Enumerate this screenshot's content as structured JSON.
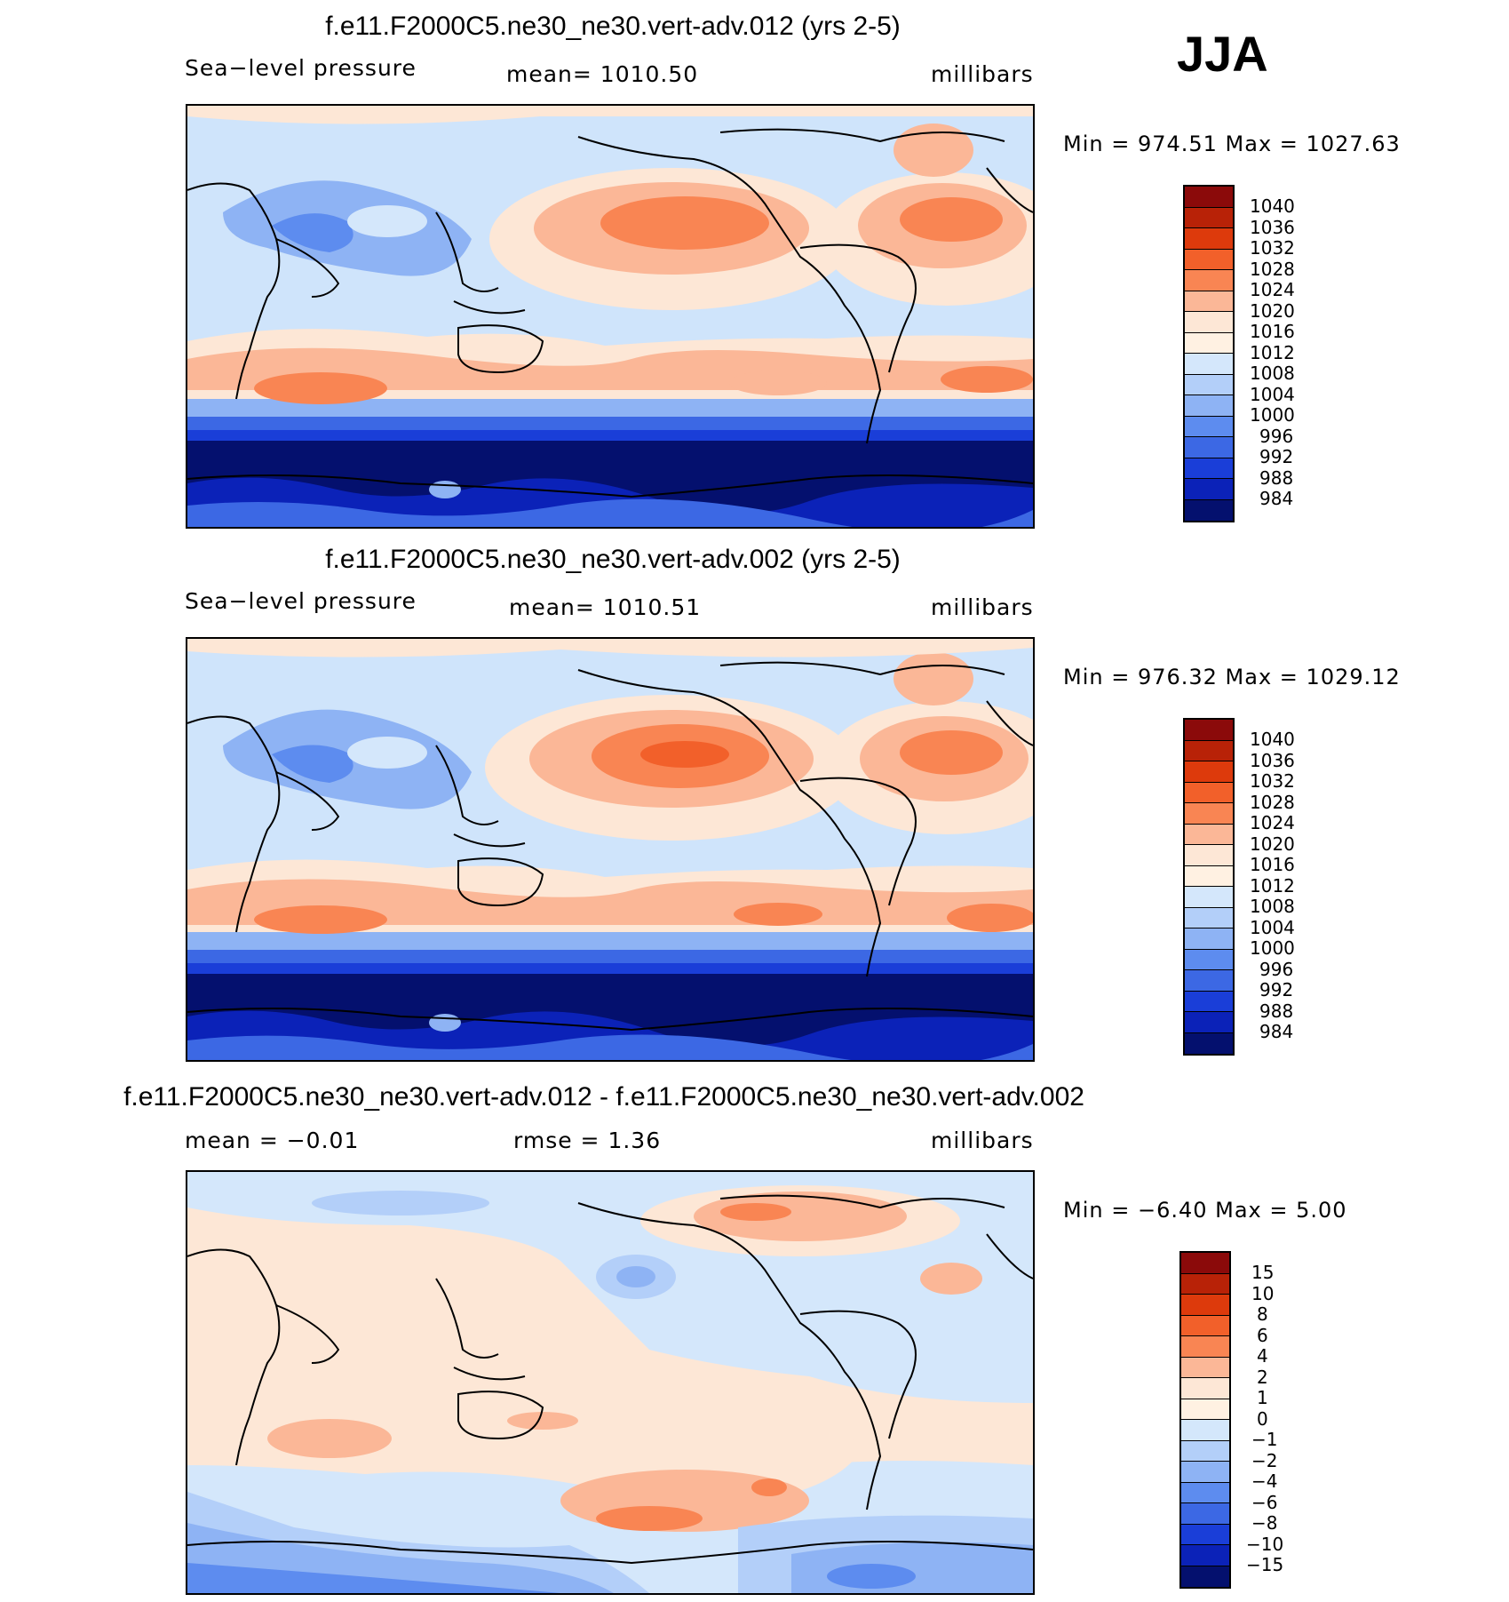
{
  "season": "JJA",
  "panels": [
    {
      "title": "f.e11.F2000C5.ne30_ne30.vert-adv.012 (yrs 2-5)",
      "left_text": "Sea−level pressure",
      "mean_text": "mean=  1010.50",
      "units": "millibars",
      "minmax": "Min  =  974.51  Max  =  1027.63",
      "colorbar_labels": [
        "1040",
        "1036",
        "1032",
        "1028",
        "1024",
        "1020",
        "1016",
        "1012",
        "1008",
        "1004",
        "1000",
        "996",
        "992",
        "988",
        "984"
      ]
    },
    {
      "title": "f.e11.F2000C5.ne30_ne30.vert-adv.002 (yrs 2-5)",
      "left_text": "Sea−level pressure",
      "mean_text": "mean=  1010.51",
      "units": "millibars",
      "minmax": "Min  =  976.32  Max  =  1029.12",
      "colorbar_labels": [
        "1040",
        "1036",
        "1032",
        "1028",
        "1024",
        "1020",
        "1016",
        "1012",
        "1008",
        "1004",
        "1000",
        "996",
        "992",
        "988",
        "984"
      ]
    },
    {
      "title": "f.e11.F2000C5.ne30_ne30.vert-adv.012 - f.e11.F2000C5.ne30_ne30.vert-adv.002",
      "left_text": "mean  =   −0.01",
      "mean_text": "rmse  =     1.36",
      "units": "millibars",
      "minmax": "Min  =    −6.40  Max  =      5.00",
      "colorbar_labels": [
        "15",
        "10",
        "8",
        "6",
        "4",
        "2",
        "1",
        "0",
        "−1",
        "−2",
        "−4",
        "−6",
        "−8",
        "−10",
        "−15"
      ]
    }
  ],
  "colors": {
    "scale": [
      "#8b0a0a",
      "#b82207",
      "#dd3a0c",
      "#f2602a",
      "#f98553",
      "#fbb797",
      "#fde7d6",
      "#fff1e2",
      "#d4e7fb",
      "#b3cff9",
      "#8eb3f4",
      "#5d8cef",
      "#3c68e4",
      "#1a3ed8",
      "#0b22b8",
      "#061890",
      "#04106e"
    ],
    "ocean_bg": "#cfe4fb",
    "neutral": "#fde7d6"
  }
}
